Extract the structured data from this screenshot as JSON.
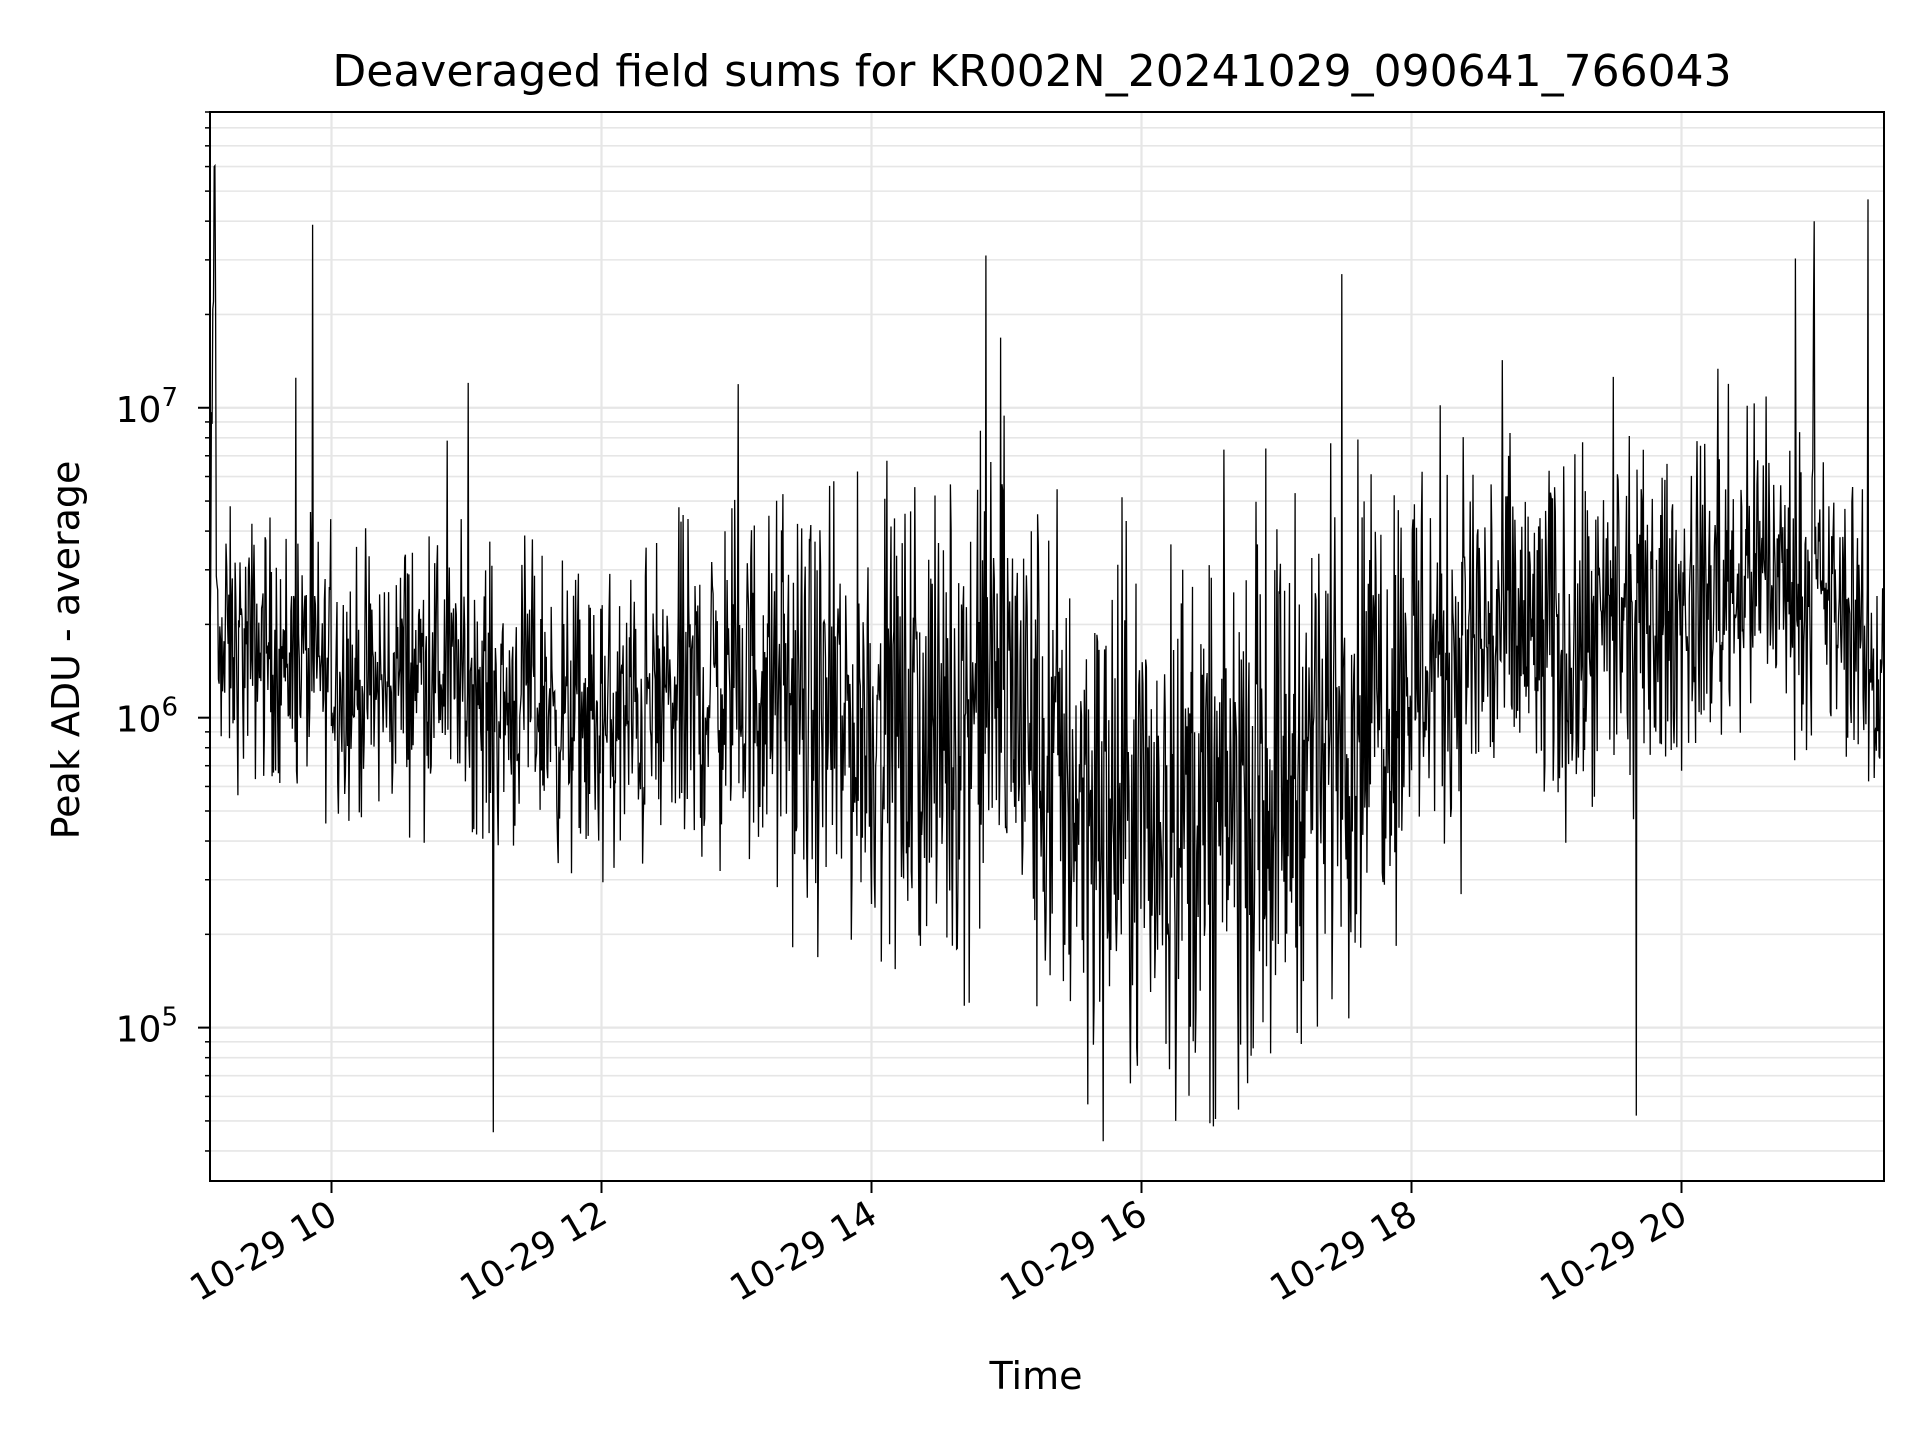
{
  "chart_data": {
    "type": "line",
    "title": "Deaveraged field sums for KR002N_20241029_090641_766043",
    "xlabel": "Time",
    "ylabel": "Peak ADU - average",
    "yscale": "log",
    "xlim": [
      "2024-10-29 09:06",
      "2024-10-29 21:30"
    ],
    "ylim": [
      32000,
      90000000
    ],
    "grid": true,
    "line_color": "#000000",
    "x_ticks": [
      {
        "value": "2024-10-29 10:00",
        "label": "10-29 10"
      },
      {
        "value": "2024-10-29 12:00",
        "label": "10-29 12"
      },
      {
        "value": "2024-10-29 14:00",
        "label": "10-29 14"
      },
      {
        "value": "2024-10-29 16:00",
        "label": "10-29 16"
      },
      {
        "value": "2024-10-29 18:00",
        "label": "10-29 18"
      },
      {
        "value": "2024-10-29 20:00",
        "label": "10-29 20"
      }
    ],
    "y_ticks": [
      {
        "value": 100000,
        "base": "10",
        "exp": "5"
      },
      {
        "value": 1000000,
        "base": "10",
        "exp": "6"
      },
      {
        "value": 10000000,
        "base": "10",
        "exp": "7"
      }
    ],
    "series": [
      {
        "x": [
          "2024-10-29 09:06",
          "2024-10-29 09:08",
          "2024-10-29 09:12",
          "2024-10-29 09:18",
          "2024-10-29 09:30",
          "2024-10-29 09:45",
          "2024-10-29 10:00",
          "2024-10-29 10:10",
          "2024-10-29 10:20",
          "2024-10-29 10:30",
          "2024-10-29 10:45",
          "2024-10-29 11:00",
          "2024-10-29 11:15",
          "2024-10-29 11:30",
          "2024-10-29 11:45",
          "2024-10-29 12:00",
          "2024-10-29 12:15",
          "2024-10-29 12:30",
          "2024-10-29 12:45",
          "2024-10-29 13:00",
          "2024-10-29 13:15",
          "2024-10-29 13:30",
          "2024-10-29 13:45",
          "2024-10-29 14:00",
          "2024-10-29 14:15",
          "2024-10-29 14:30",
          "2024-10-29 14:45",
          "2024-10-29 15:00",
          "2024-10-29 15:15",
          "2024-10-29 15:30",
          "2024-10-29 15:45",
          "2024-10-29 16:00",
          "2024-10-29 16:15",
          "2024-10-29 16:30",
          "2024-10-29 16:45",
          "2024-10-29 17:00",
          "2024-10-29 17:15",
          "2024-10-29 17:30",
          "2024-10-29 17:45",
          "2024-10-29 18:00",
          "2024-10-29 18:15",
          "2024-10-29 18:30",
          "2024-10-29 18:45",
          "2024-10-29 19:00",
          "2024-10-29 19:15",
          "2024-10-29 19:30",
          "2024-10-29 19:45",
          "2024-10-29 20:00",
          "2024-10-29 20:15",
          "2024-10-29 20:30",
          "2024-10-29 20:45",
          "2024-10-29 21:00",
          "2024-10-29 21:15",
          "2024-10-29 21:30"
        ],
        "values": [
          1500000,
          60000000,
          1800000,
          1600000,
          1700000,
          1500000,
          1400000,
          1300000,
          1200000,
          1400000,
          1500000,
          1300000,
          1100000,
          1200000,
          1000000,
          900000,
          1000000,
          1100000,
          1200000,
          1300000,
          1200000,
          1000000,
          900000,
          1000000,
          900000,
          800000,
          1200000,
          1300000,
          700000,
          600000,
          500000,
          450000,
          500000,
          450000,
          550000,
          600000,
          800000,
          1000000,
          1200000,
          1500000,
          1700000,
          1800000,
          1900000,
          1700000,
          1600000,
          1800000,
          2000000,
          2200000,
          2500000,
          3000000,
          2800000,
          2500000,
          2000000,
          1200000
        ]
      }
    ],
    "annotations": [
      {
        "x": "2024-10-29 09:08",
        "y": 60000000
      },
      {
        "x": "2024-10-29 14:51",
        "y": 31000000
      },
      {
        "x": "2024-10-29 17:29",
        "y": 27000000
      },
      {
        "x": "2024-10-29 20:59",
        "y": 40000000
      },
      {
        "x": "2024-10-29 21:23",
        "y": 47000000
      },
      {
        "x": "2024-10-29 15:43",
        "y": 43000
      },
      {
        "x": "2024-10-29 16:32",
        "y": 48000
      },
      {
        "x": "2024-10-29 11:12",
        "y": 46000
      },
      {
        "x": "2024-10-29 19:40",
        "y": 52000
      }
    ]
  }
}
